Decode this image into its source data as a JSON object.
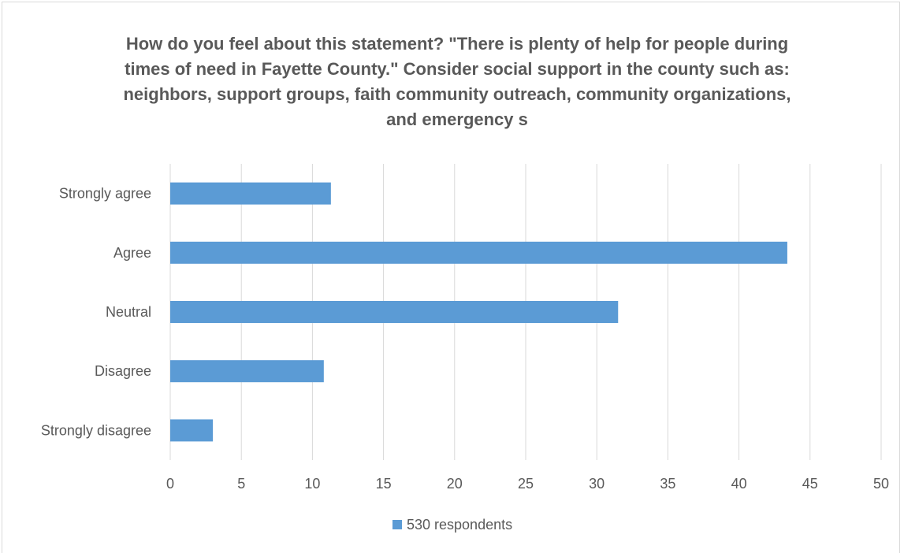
{
  "chart_data": {
    "type": "bar",
    "orientation": "horizontal",
    "title": "How do you feel about this statement? \"There is plenty of help for people during times of need in Fayette County.\" Consider social support in the county such as: neighbors, support groups, faith community outreach, community organizations, and emergency s",
    "categories": [
      "Strongly agree",
      "Agree",
      "Neutral",
      "Disagree",
      "Strongly disagree"
    ],
    "series": [
      {
        "name": "530 respondents",
        "values": [
          11.3,
          43.4,
          31.5,
          10.8,
          3.0
        ],
        "color": "#5b9bd5"
      }
    ],
    "xlim": [
      0,
      50
    ],
    "xticks": [
      0,
      5,
      10,
      15,
      20,
      25,
      30,
      35,
      40,
      45,
      50
    ],
    "xlabel": "",
    "ylabel": "",
    "grid": "vertical",
    "legend": "bottom"
  }
}
